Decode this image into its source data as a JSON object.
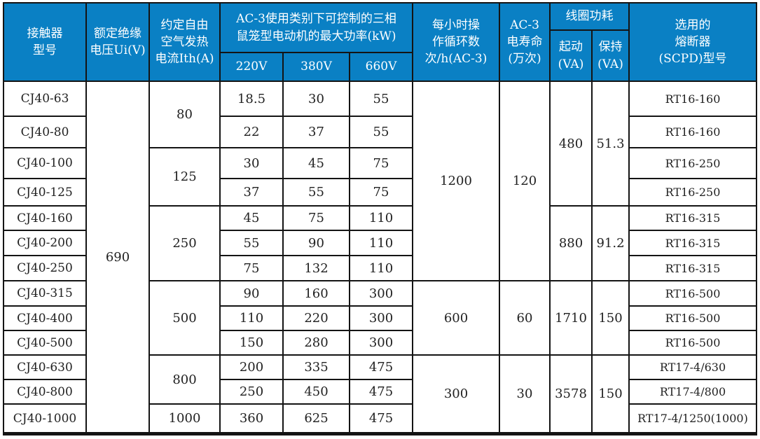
{
  "colors": {
    "header_bg": "#0A80C4",
    "header_text": "#FFFFFF",
    "border": "#141414",
    "body_text": "#222222"
  },
  "header": {
    "model": "接触器\n型号",
    "voltage": "额定绝缘\n电压Ui(V)",
    "thermal": "约定自由\n空气发热\n电流Ith(A)",
    "power_group": "AC-3使用类别下可控制的三相\n鼠笼型电动机的最大功率(kW)",
    "v220": "220V",
    "v380": "380V",
    "v660": "660V",
    "cycles": "每小时操\n作循环数\n次/h(AC-3)",
    "life": "AC-3\n电寿命\n(万次)",
    "coil_group": "线圈功耗",
    "pickup": "起动\n(VA)",
    "hold": "保持\n(VA)",
    "fuse": "选用的\n熔断器\n(SCPD)型号"
  },
  "body": {
    "models": [
      "CJ40-63",
      "CJ40-80",
      "CJ40-100",
      "CJ40-125",
      "CJ40-160",
      "CJ40-200",
      "CJ40-250",
      "CJ40-315",
      "CJ40-400",
      "CJ40-500",
      "CJ40-630",
      "CJ40-800",
      "CJ40-1000"
    ],
    "voltage_ui": "690",
    "ith": [
      "80",
      "125",
      "250",
      "500",
      "800",
      "1000"
    ],
    "p220": [
      "18.5",
      "22",
      "30",
      "37",
      "45",
      "55",
      "75",
      "90",
      "110",
      "150",
      "200",
      "250",
      "360"
    ],
    "p380": [
      "30",
      "37",
      "45",
      "55",
      "75",
      "90",
      "132",
      "160",
      "220",
      "280",
      "335",
      "450",
      "625"
    ],
    "p660": [
      "55",
      "55",
      "75",
      "75",
      "110",
      "110",
      "110",
      "300",
      "300",
      "300",
      "475",
      "475",
      "475"
    ],
    "cycles": [
      "1200",
      "600",
      "300"
    ],
    "life": [
      "120",
      "60",
      "30"
    ],
    "pickup": [
      "480",
      "880",
      "1710",
      "3578"
    ],
    "hold": [
      "51.3",
      "91.2",
      "150",
      "150"
    ],
    "fuses": [
      "RT16-160",
      "RT16-160",
      "RT16-250",
      "RT16-250",
      "RT16-315",
      "RT16-315",
      "RT16-315",
      "RT16-500",
      "RT16-500",
      "RT16-500",
      "RT17-4/630",
      "RT17-4/800",
      "RT17-4/1250(1000)"
    ]
  }
}
